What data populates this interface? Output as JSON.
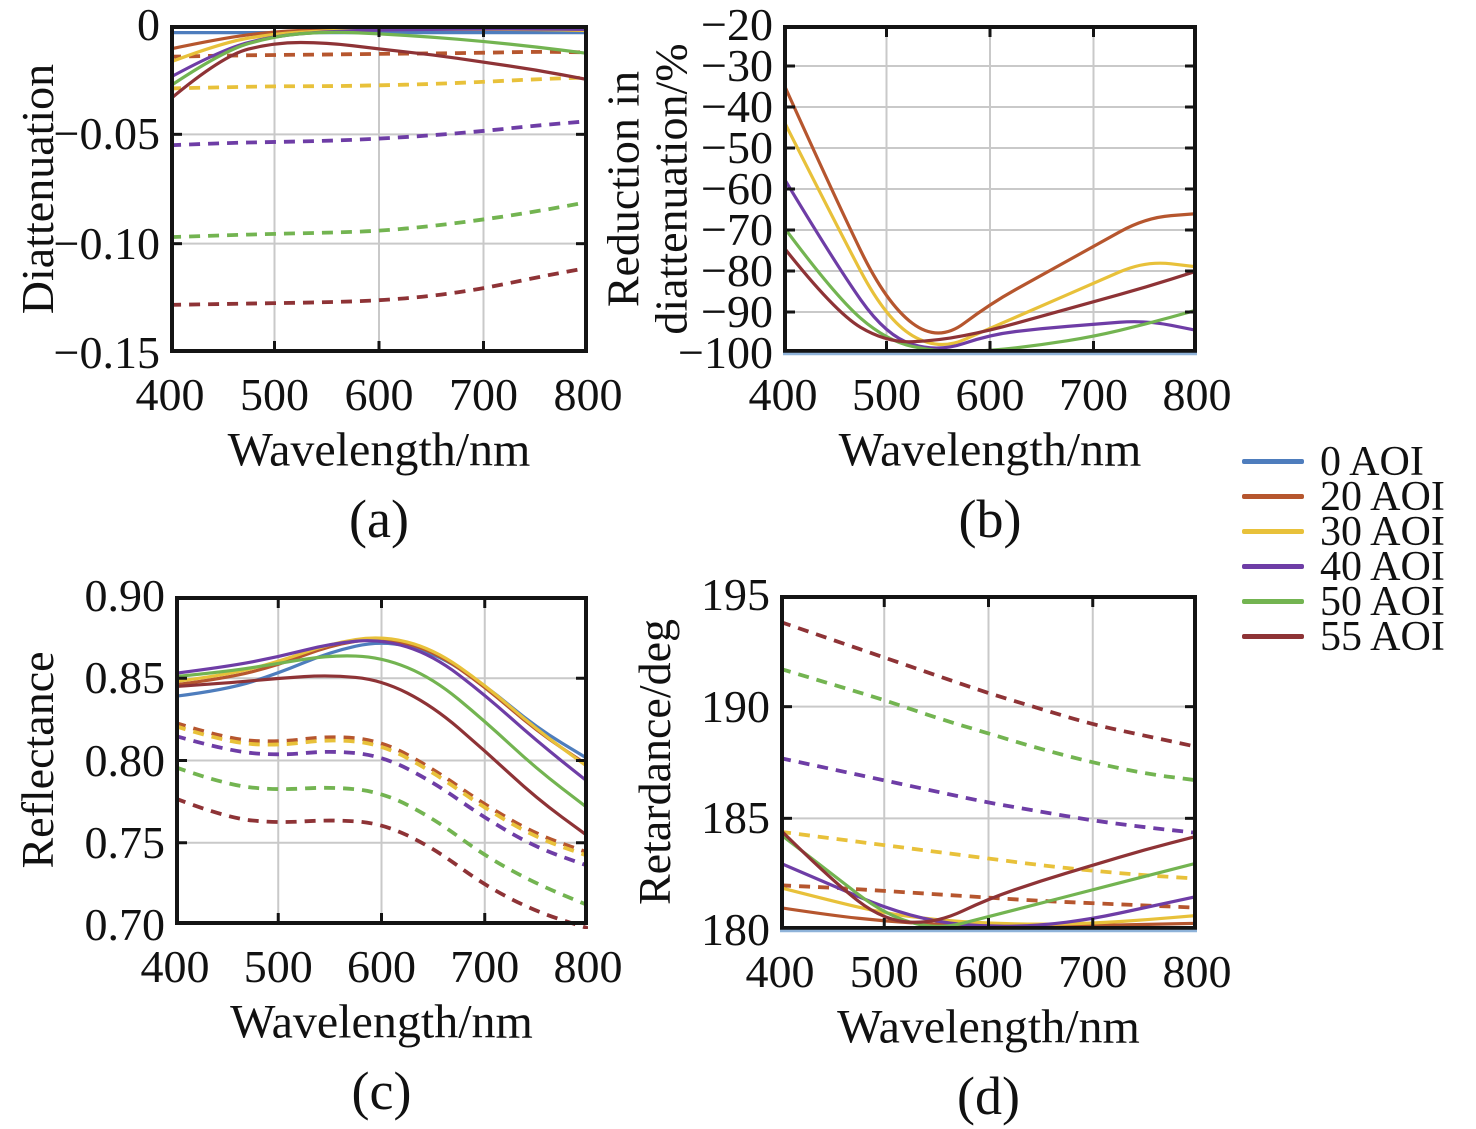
{
  "figure": {
    "background": "#ffffff"
  },
  "legend": {
    "items": [
      {
        "label": "0 AOI",
        "color": "#4e7dbd"
      },
      {
        "label": "20 AOI",
        "color": "#b6562e"
      },
      {
        "label": "30 AOI",
        "color": "#e8c13a"
      },
      {
        "label": "40 AOI",
        "color": "#6e3da6"
      },
      {
        "label": "50 AOI",
        "color": "#73b451"
      },
      {
        "label": "55 AOI",
        "color": "#8e3336"
      }
    ]
  },
  "chart_data": [
    {
      "type": "line",
      "caption": "(a)",
      "ylabel": "Diattenuation",
      "xlabel": "Wavelength/nm",
      "xlim": [
        400,
        800
      ],
      "ylim": [
        -0.15,
        0
      ],
      "xticks": [
        400,
        500,
        600,
        700,
        800
      ],
      "xtick_labels": [
        "400",
        "500",
        "600",
        "700",
        "800"
      ],
      "yticks": [
        0,
        -0.05,
        -0.1,
        -0.15
      ],
      "ytick_labels": [
        "0",
        "−0.05",
        "−0.10",
        "−0.15"
      ],
      "grid": true,
      "x": [
        400,
        450,
        500,
        550,
        600,
        650,
        700,
        750,
        800
      ],
      "series": [
        {
          "name": "20 AOI dashed",
          "style": "dashed",
          "color": "#b6562e",
          "y": [
            -0.0145,
            -0.014,
            -0.0137,
            -0.0135,
            -0.0132,
            -0.013,
            -0.0127,
            -0.0122,
            -0.0125
          ]
        },
        {
          "name": "30 AOI dashed",
          "style": "dashed",
          "color": "#e8c13a",
          "y": [
            -0.029,
            -0.0285,
            -0.028,
            -0.028,
            -0.0276,
            -0.027,
            -0.026,
            -0.0248,
            -0.024
          ]
        },
        {
          "name": "40 AOI dashed",
          "style": "dashed",
          "color": "#6e3da6",
          "y": [
            -0.055,
            -0.054,
            -0.0535,
            -0.053,
            -0.052,
            -0.0505,
            -0.0485,
            -0.046,
            -0.044
          ]
        },
        {
          "name": "50 AOI dashed",
          "style": "dashed",
          "color": "#73b451",
          "y": [
            -0.097,
            -0.0962,
            -0.0955,
            -0.095,
            -0.0942,
            -0.092,
            -0.089,
            -0.0853,
            -0.081
          ]
        },
        {
          "name": "55 AOI dashed",
          "style": "dashed",
          "color": "#8e3336",
          "y": [
            -0.128,
            -0.1276,
            -0.1272,
            -0.1268,
            -0.126,
            -0.124,
            -0.1205,
            -0.1155,
            -0.111
          ]
        },
        {
          "name": "0 AOI",
          "style": "solid",
          "color": "#4e7dbd",
          "y": [
            -0.0035,
            -0.0035,
            -0.0035,
            -0.0035,
            -0.0035,
            -0.0035,
            -0.0035,
            -0.0035,
            -0.0035
          ]
        },
        {
          "name": "20 AOI",
          "style": "solid",
          "color": "#b6562e",
          "y": [
            -0.011,
            -0.006,
            -0.003,
            -0.002,
            -0.002,
            -0.002,
            -0.002,
            -0.002,
            -0.0025
          ]
        },
        {
          "name": "30 AOI",
          "style": "solid",
          "color": "#e8c13a",
          "y": [
            -0.017,
            -0.008,
            -0.004,
            -0.0025,
            -0.002,
            -0.002,
            -0.002,
            -0.002,
            -0.0025
          ]
        },
        {
          "name": "40 AOI",
          "style": "solid",
          "color": "#6e3da6",
          "y": [
            -0.024,
            -0.011,
            -0.005,
            -0.003,
            -0.0022,
            -0.002,
            -0.0018,
            -0.0018,
            -0.002
          ]
        },
        {
          "name": "50 AOI",
          "style": "solid",
          "color": "#73b451",
          "y": [
            -0.028,
            -0.012,
            -0.005,
            -0.003,
            -0.004,
            -0.0055,
            -0.0075,
            -0.01,
            -0.013
          ]
        },
        {
          "name": "55 AOI",
          "style": "solid",
          "color": "#8e3336",
          "y": [
            -0.034,
            -0.014,
            -0.008,
            -0.008,
            -0.011,
            -0.0135,
            -0.017,
            -0.0205,
            -0.025
          ]
        }
      ]
    },
    {
      "type": "line",
      "caption": "(b)",
      "ylabel": "Reduction in\ndiattenuation/%",
      "xlabel": "Wavelength/nm",
      "xlim": [
        400,
        800
      ],
      "ylim": [
        -100,
        -20
      ],
      "xticks": [
        400,
        500,
        600,
        700,
        800
      ],
      "xtick_labels": [
        "400",
        "500",
        "600",
        "700",
        "800"
      ],
      "yticks": [
        -20,
        -30,
        -40,
        -50,
        -60,
        -70,
        -80,
        -90,
        -100
      ],
      "ytick_labels": [
        "−20",
        "−30",
        "−40",
        "−50",
        "−60",
        "−70",
        "−80",
        "−90",
        "−100"
      ],
      "grid": true,
      "bottom_edge_line": "#8fb3d9",
      "x": [
        400,
        450,
        500,
        550,
        600,
        650,
        700,
        750,
        800
      ],
      "series": [
        {
          "name": "0 AOI",
          "style": "solid",
          "color": "#4e7dbd",
          "y": [
            -100,
            -100,
            -100,
            -100,
            -100,
            -100,
            -100,
            -100,
            -100
          ]
        },
        {
          "name": "20 AOI",
          "style": "solid",
          "color": "#b6562e",
          "y": [
            -34,
            -62,
            -88,
            -97.5,
            -88,
            -81,
            -74,
            -67,
            -66
          ]
        },
        {
          "name": "30 AOI",
          "style": "solid",
          "color": "#e8c13a",
          "y": [
            -43,
            -68,
            -92,
            -99.5,
            -94,
            -88.5,
            -83,
            -77.5,
            -79
          ]
        },
        {
          "name": "40 AOI",
          "style": "solid",
          "color": "#6e3da6",
          "y": [
            -57,
            -78,
            -96,
            -99.8,
            -95.5,
            -94,
            -93,
            -92,
            -94.5
          ]
        },
        {
          "name": "50 AOI",
          "style": "solid",
          "color": "#73b451",
          "y": [
            -69,
            -86,
            -97,
            -99.8,
            -99.5,
            -98,
            -96,
            -93,
            -89.5
          ]
        },
        {
          "name": "55 AOI",
          "style": "solid",
          "color": "#8e3336",
          "y": [
            -74,
            -90,
            -97.5,
            -97,
            -94.5,
            -91,
            -87.5,
            -84,
            -80
          ]
        }
      ]
    },
    {
      "type": "line",
      "caption": "(c)",
      "ylabel": "Reflectance",
      "xlabel": "Wavelength/nm",
      "xlim": [
        400,
        800
      ],
      "ylim": [
        0.7,
        0.9
      ],
      "xticks": [
        400,
        500,
        600,
        700,
        800
      ],
      "xtick_labels": [
        "400",
        "500",
        "600",
        "700",
        "800"
      ],
      "yticks": [
        0.9,
        0.85,
        0.8,
        0.75,
        0.7
      ],
      "ytick_labels": [
        "0.90",
        "0.85",
        "0.80",
        "0.75",
        "0.70"
      ],
      "grid": true,
      "x": [
        400,
        450,
        500,
        550,
        600,
        650,
        700,
        750,
        800
      ],
      "series": [
        {
          "name": "20 AOI dashed",
          "style": "dashed",
          "color": "#b6562e",
          "y": [
            0.823,
            0.813,
            0.811,
            0.815,
            0.812,
            0.795,
            0.773,
            0.755,
            0.744
          ]
        },
        {
          "name": "30 AOI dashed",
          "style": "dashed",
          "color": "#e8c13a",
          "y": [
            0.821,
            0.811,
            0.809,
            0.813,
            0.81,
            0.793,
            0.771,
            0.753,
            0.742
          ]
        },
        {
          "name": "40 AOI dashed",
          "style": "dashed",
          "color": "#6e3da6",
          "y": [
            0.815,
            0.806,
            0.803,
            0.806,
            0.803,
            0.787,
            0.765,
            0.747,
            0.736
          ]
        },
        {
          "name": "50 AOI dashed",
          "style": "dashed",
          "color": "#73b451",
          "y": [
            0.796,
            0.785,
            0.782,
            0.784,
            0.781,
            0.765,
            0.742,
            0.725,
            0.712
          ]
        },
        {
          "name": "55 AOI dashed",
          "style": "dashed",
          "color": "#8e3336",
          "y": [
            0.777,
            0.765,
            0.762,
            0.764,
            0.762,
            0.747,
            0.724,
            0.708,
            0.698
          ]
        },
        {
          "name": "0 AOI",
          "style": "solid",
          "color": "#4e7dbd",
          "y": [
            0.839,
            0.843,
            0.853,
            0.866,
            0.873,
            0.866,
            0.846,
            0.82,
            0.801
          ]
        },
        {
          "name": "20 AOI",
          "style": "solid",
          "color": "#b6562e",
          "y": [
            0.846,
            0.85,
            0.858,
            0.87,
            0.875,
            0.867,
            0.845,
            0.818,
            0.797
          ]
        },
        {
          "name": "30 AOI",
          "style": "solid",
          "color": "#e8c13a",
          "y": [
            0.848,
            0.852,
            0.86,
            0.871,
            0.876,
            0.868,
            0.846,
            0.819,
            0.796
          ]
        },
        {
          "name": "40 AOI",
          "style": "solid",
          "color": "#6e3da6",
          "y": [
            0.853,
            0.857,
            0.863,
            0.871,
            0.874,
            0.864,
            0.84,
            0.812,
            0.787
          ]
        },
        {
          "name": "50 AOI",
          "style": "solid",
          "color": "#73b451",
          "y": [
            0.851,
            0.854,
            0.859,
            0.864,
            0.863,
            0.85,
            0.824,
            0.795,
            0.771
          ]
        },
        {
          "name": "55 AOI",
          "style": "solid",
          "color": "#8e3336",
          "y": [
            0.845,
            0.847,
            0.85,
            0.852,
            0.849,
            0.833,
            0.806,
            0.777,
            0.754
          ]
        }
      ]
    },
    {
      "type": "line",
      "caption": "(d)",
      "ylabel": "Retardance/deg",
      "xlabel": "Wavelength/nm",
      "xlim": [
        400,
        800
      ],
      "ylim": [
        180,
        195
      ],
      "xticks": [
        400,
        500,
        600,
        700,
        800
      ],
      "xtick_labels": [
        "400",
        "500",
        "600",
        "700",
        "800"
      ],
      "yticks": [
        195,
        190,
        185,
        180
      ],
      "ytick_labels": [
        "195",
        "190",
        "185",
        "180"
      ],
      "grid": true,
      "bottom_edge_line": "#8fb3d9",
      "x": [
        400,
        450,
        500,
        550,
        600,
        650,
        700,
        750,
        800
      ],
      "series": [
        {
          "name": "20 AOI dashed",
          "style": "dashed",
          "color": "#b6562e",
          "y": [
            182.0,
            181.9,
            181.75,
            181.6,
            181.45,
            181.3,
            181.2,
            181.1,
            181.0
          ]
        },
        {
          "name": "30 AOI dashed",
          "style": "dashed",
          "color": "#e8c13a",
          "y": [
            184.4,
            184.1,
            183.8,
            183.5,
            183.2,
            182.9,
            182.65,
            182.45,
            182.3
          ]
        },
        {
          "name": "40 AOI dashed",
          "style": "dashed",
          "color": "#6e3da6",
          "y": [
            187.7,
            187.2,
            186.7,
            186.2,
            185.7,
            185.3,
            184.9,
            184.6,
            184.35
          ]
        },
        {
          "name": "50 AOI dashed",
          "style": "dashed",
          "color": "#73b451",
          "y": [
            191.7,
            191.0,
            190.3,
            189.5,
            188.8,
            188.1,
            187.5,
            187.0,
            186.7
          ]
        },
        {
          "name": "55 AOI dashed",
          "style": "dashed",
          "color": "#8e3336",
          "y": [
            193.8,
            193.0,
            192.2,
            191.4,
            190.6,
            189.9,
            189.2,
            188.7,
            188.2
          ]
        },
        {
          "name": "0 AOI",
          "style": "solid",
          "color": "#4e7dbd",
          "y": [
            180,
            180,
            180,
            180,
            180,
            180,
            180,
            180,
            180
          ]
        },
        {
          "name": "20 AOI",
          "style": "solid",
          "color": "#b6562e",
          "y": [
            181.0,
            180.65,
            180.4,
            180.25,
            180.2,
            180.2,
            180.2,
            180.25,
            180.3
          ]
        },
        {
          "name": "30 AOI",
          "style": "solid",
          "color": "#e8c13a",
          "y": [
            181.9,
            181.3,
            180.75,
            180.45,
            180.3,
            180.25,
            180.3,
            180.45,
            180.65
          ]
        },
        {
          "name": "40 AOI",
          "style": "solid",
          "color": "#6e3da6",
          "y": [
            183.0,
            182.0,
            181.0,
            180.35,
            180.15,
            180.2,
            180.5,
            181.0,
            181.5
          ]
        },
        {
          "name": "50 AOI",
          "style": "solid",
          "color": "#73b451",
          "y": [
            184.3,
            182.5,
            180.7,
            180.0,
            180.6,
            181.2,
            181.8,
            182.4,
            183.0
          ]
        },
        {
          "name": "55 AOI",
          "style": "solid",
          "color": "#8e3336",
          "y": [
            184.5,
            182.2,
            180.4,
            180.3,
            181.4,
            182.2,
            182.9,
            183.6,
            184.2
          ]
        }
      ]
    }
  ]
}
